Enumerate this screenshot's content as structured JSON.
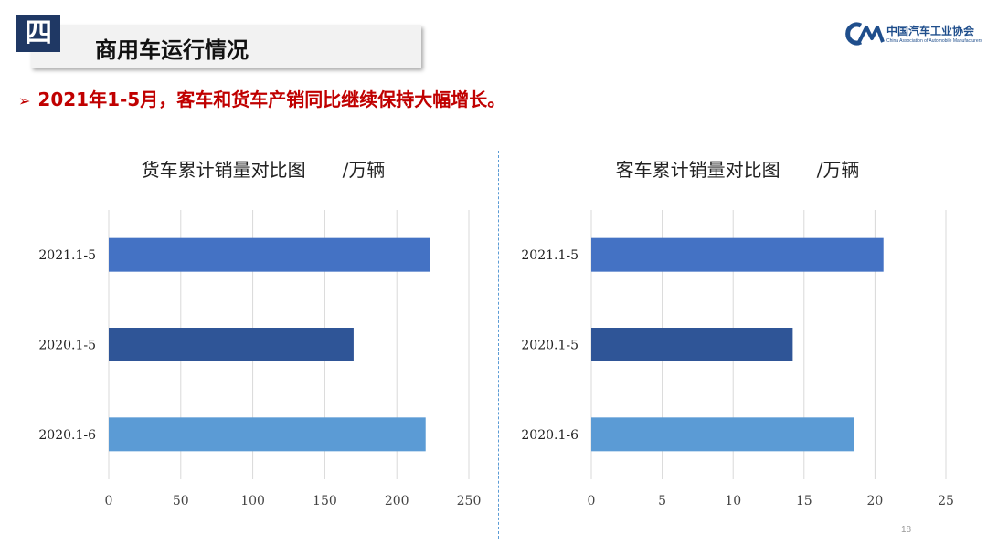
{
  "header": {
    "section_number": "四",
    "section_title": "商用车运行情况",
    "logo_cn": "中国汽车工业协会",
    "logo_en": "China Association of Automobile Manufacturers"
  },
  "headline": {
    "bullet": "➢",
    "text": "2021年1-5月，客车和货车产销同比继续保持大幅增长。"
  },
  "page_number": "18",
  "chart_data": [
    {
      "type": "bar",
      "orientation": "horizontal",
      "title": "货车累计销量对比图　　/万辆",
      "categories": [
        "2021.1-5",
        "2020.1-5",
        "2020.1-6"
      ],
      "values": [
        223,
        170,
        220
      ],
      "colors": [
        "#4472c4",
        "#2f5597",
        "#5b9bd5"
      ],
      "xlim": [
        0,
        250
      ],
      "xticks": [
        0,
        50,
        100,
        150,
        200,
        250
      ],
      "grid": true,
      "legend": "none"
    },
    {
      "type": "bar",
      "orientation": "horizontal",
      "title": "客车累计销量对比图　　/万辆",
      "categories": [
        "2021.1-5",
        "2020.1-5",
        "2020.1-6"
      ],
      "values": [
        20.6,
        14.2,
        18.5
      ],
      "colors": [
        "#4472c4",
        "#2f5597",
        "#5b9bd5"
      ],
      "xlim": [
        0,
        25
      ],
      "xticks": [
        0,
        5,
        10,
        15,
        20,
        25
      ],
      "grid": true,
      "legend": "none"
    }
  ]
}
